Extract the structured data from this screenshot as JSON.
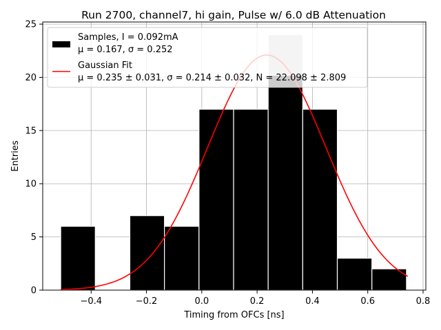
{
  "chart_data": {
    "type": "bar",
    "title": "Run 2700, channel7, hi gain, Pulse w/ 6.0 dB Attenuation",
    "xlabel": "Timing from OFCs [ns]",
    "ylabel": "Entries",
    "xlim": [
      -0.575,
      0.81
    ],
    "ylim": [
      0,
      25.2
    ],
    "xticks": [
      -0.4,
      -0.2,
      0.0,
      0.2,
      0.4,
      0.6,
      0.8
    ],
    "xtick_labels": [
      "−0.4",
      "−0.2",
      "0.0",
      "0.2",
      "0.4",
      "0.6",
      "0.8"
    ],
    "yticks": [
      0,
      5,
      10,
      15,
      20,
      25
    ],
    "ytick_labels": [
      "0",
      "5",
      "10",
      "15",
      "20",
      "25"
    ],
    "grid": true,
    "legend_position": "top-left",
    "histogram": {
      "name": "Samples, I = 0.092mA",
      "stats": "μ = 0.167, σ = 0.252",
      "color": "#000000",
      "edge_color": "#ffffff",
      "bins": [
        {
          "x0": -0.51,
          "x1": -0.385,
          "count": 6
        },
        {
          "x0": -0.385,
          "x1": -0.26,
          "count": 0
        },
        {
          "x0": -0.26,
          "x1": -0.135,
          "count": 7
        },
        {
          "x0": -0.135,
          "x1": -0.01,
          "count": 6
        },
        {
          "x0": -0.01,
          "x1": 0.115,
          "count": 17
        },
        {
          "x0": 0.115,
          "x1": 0.24,
          "count": 17
        },
        {
          "x0": 0.24,
          "x1": 0.365,
          "count": 24
        },
        {
          "x0": 0.365,
          "x1": 0.49,
          "count": 17
        },
        {
          "x0": 0.49,
          "x1": 0.615,
          "count": 3
        },
        {
          "x0": 0.615,
          "x1": 0.74,
          "count": 2
        }
      ]
    },
    "fit": {
      "name": "Gaussian Fit",
      "stats": "μ = 0.235 ± 0.031, σ = 0.214 ± 0.032, N = 22.098 ± 2.809",
      "color": "#ff0000",
      "mu": 0.235,
      "sigma": 0.214,
      "N": 22.098,
      "x_range": [
        -0.51,
        0.745
      ]
    },
    "overlay": {
      "color": "#c8c8c8",
      "overlap_bin_index": 6
    }
  }
}
